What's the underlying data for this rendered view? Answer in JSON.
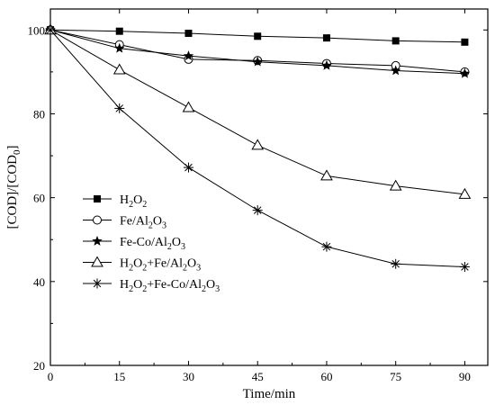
{
  "chart_data": {
    "type": "line",
    "xlabel": "Time/min",
    "ylabel": "[COD]/[COD0]",
    "ylabel_parts": {
      "left_bracket": "[",
      "a": "COD]/[COD",
      "sub": "0",
      "right_bracket": "]"
    },
    "xlim": [
      0,
      95
    ],
    "ylim": [
      20,
      105
    ],
    "x_ticks": [
      0,
      15,
      30,
      45,
      60,
      75,
      90
    ],
    "y_ticks": [
      20,
      40,
      60,
      80,
      100
    ],
    "x_tick_labels": [
      "0",
      "15",
      "30",
      "45",
      "60",
      "75",
      "90"
    ],
    "y_tick_labels": [
      "20",
      "40",
      "60",
      "80",
      "100"
    ],
    "x": [
      0,
      15,
      30,
      45,
      60,
      75,
      90
    ],
    "grid": false,
    "legend_position": "left",
    "series": [
      {
        "name": "H2O2",
        "legend_parts": [
          [
            "H",
            false
          ],
          [
            "2",
            true
          ],
          [
            "O",
            false
          ],
          [
            "2",
            true
          ]
        ],
        "marker": "filled-square",
        "values": [
          100,
          99.7,
          99.2,
          98.5,
          98.1,
          97.4,
          97.1
        ]
      },
      {
        "name": "Fe/Al2O3",
        "legend_parts": [
          [
            "Fe/Al",
            false
          ],
          [
            "2",
            true
          ],
          [
            "O",
            false
          ],
          [
            "3",
            true
          ]
        ],
        "marker": "open-circle",
        "values": [
          100,
          96.5,
          93.0,
          92.7,
          92.0,
          91.5,
          90.0
        ]
      },
      {
        "name": "Fe-Co/Al2O3",
        "legend_parts": [
          [
            "Fe-Co/Al",
            false
          ],
          [
            "2",
            true
          ],
          [
            "O",
            false
          ],
          [
            "3",
            true
          ]
        ],
        "marker": "filled-star",
        "values": [
          100,
          95.6,
          93.8,
          92.4,
          91.5,
          90.3,
          89.6
        ]
      },
      {
        "name": "H2O2+Fe/Al2O3",
        "legend_parts": [
          [
            "H",
            false
          ],
          [
            "2",
            true
          ],
          [
            "O",
            false
          ],
          [
            "2",
            true
          ],
          [
            "+Fe/Al",
            false
          ],
          [
            "2",
            true
          ],
          [
            "O",
            false
          ],
          [
            "3",
            true
          ]
        ],
        "marker": "open-triangle",
        "values": [
          100,
          90.5,
          81.5,
          72.5,
          65.2,
          62.8,
          60.8
        ]
      },
      {
        "name": "H2O2+Fe-Co/Al2O3",
        "legend_parts": [
          [
            "H",
            false
          ],
          [
            "2",
            true
          ],
          [
            "O",
            false
          ],
          [
            "2",
            true
          ],
          [
            "+Fe-Co/Al",
            false
          ],
          [
            "2",
            true
          ],
          [
            "O",
            false
          ],
          [
            "3",
            true
          ]
        ],
        "marker": "asterisk",
        "values": [
          100,
          81.3,
          67.2,
          57.0,
          48.3,
          44.2,
          43.5
        ]
      }
    ]
  }
}
